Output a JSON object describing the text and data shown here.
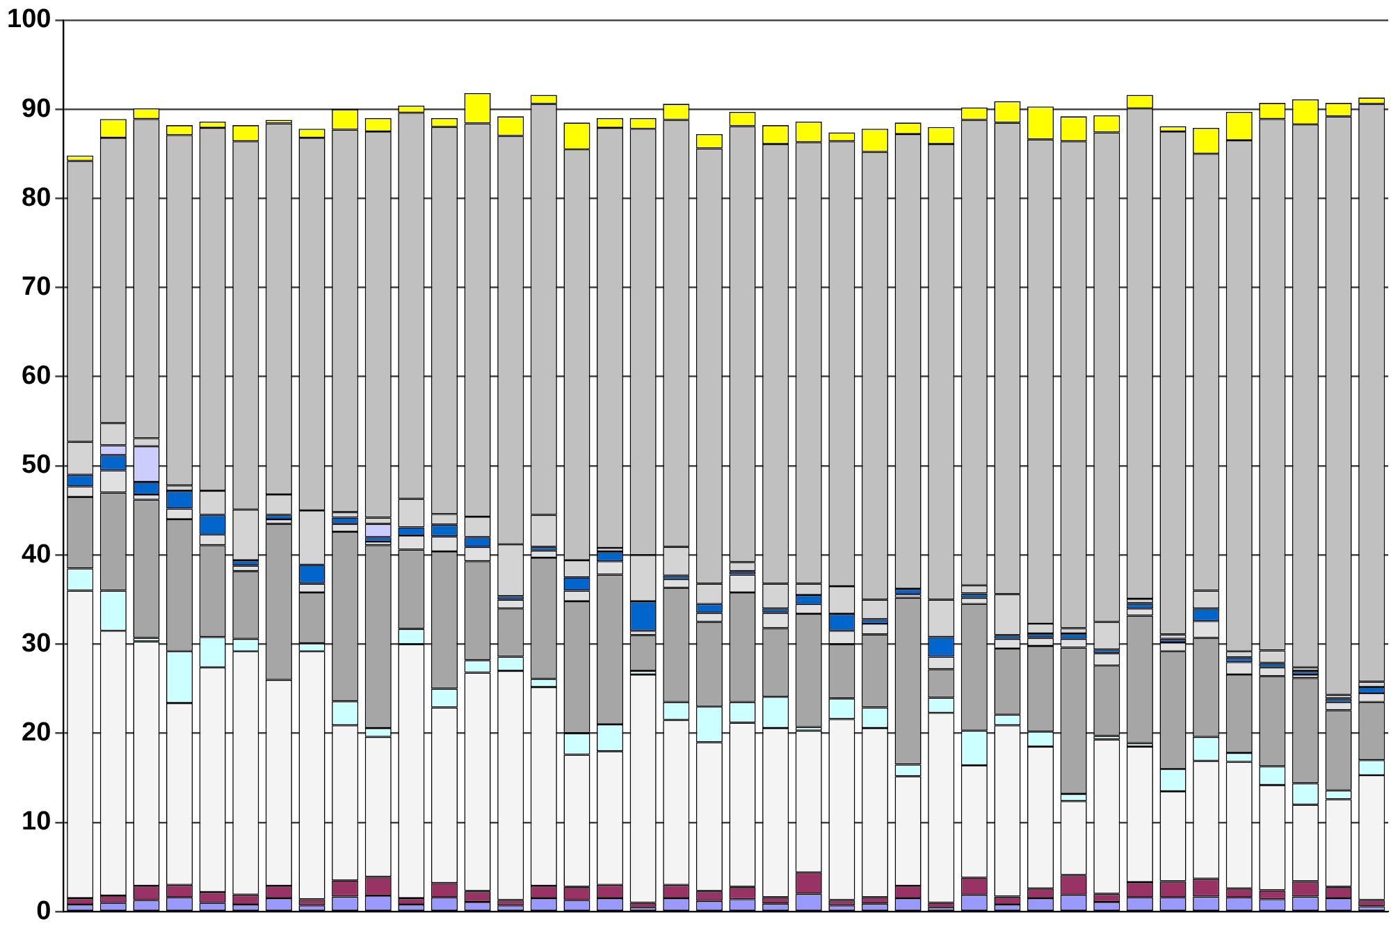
{
  "chart_data": {
    "type": "bar",
    "stacked": true,
    "grid": "y",
    "legend": false,
    "categories": [
      null,
      null,
      null,
      null,
      null,
      null,
      null,
      null,
      null,
      null,
      null,
      null,
      null,
      null,
      null,
      null,
      null,
      null,
      null,
      null,
      null,
      null,
      null,
      null,
      null,
      null,
      null,
      null,
      null,
      null,
      null,
      null,
      null,
      null,
      null,
      null,
      null,
      null,
      null,
      null
    ],
    "ylim": [
      0,
      100
    ],
    "yticks": [
      0,
      10,
      20,
      30,
      40,
      50,
      60,
      70,
      80,
      90,
      100
    ],
    "series": [
      {
        "color": "#9999ff",
        "values": [
          0.8,
          1,
          1.3,
          1.6,
          1,
          0.8,
          1.5,
          0.7,
          1.7,
          1.8,
          0.8,
          1.6,
          1.1,
          0.7,
          1.5,
          1.3,
          1.5,
          0.5,
          1.5,
          1.2,
          1.4,
          0.9,
          2,
          0.7,
          0.9,
          1.5,
          0.5,
          1.9,
          0.8,
          1.5,
          1.9,
          1.1,
          1.6,
          1.6,
          1.7,
          1.6,
          1.4,
          1.7,
          1.5,
          0.6
        ]
      },
      {
        "color": "#993366",
        "values": [
          0.7,
          0.8,
          1.6,
          1.4,
          1.2,
          1.1,
          1.4,
          0.7,
          1.8,
          2.1,
          0.7,
          1.6,
          1.2,
          0.6,
          1.4,
          1.5,
          1.5,
          0.5,
          1.5,
          1.1,
          1.4,
          0.7,
          2.4,
          0.6,
          0.7,
          1.4,
          0.5,
          1.9,
          0.9,
          1.1,
          2.2,
          0.9,
          1.7,
          1.8,
          2,
          1,
          1,
          1.7,
          1.3,
          0.7
        ]
      },
      {
        "color": "#f4f4f4",
        "values": [
          34.5,
          29.7,
          27.4,
          20.4,
          25.2,
          27.3,
          23.1,
          27.8,
          17.4,
          15.7,
          28.5,
          19.7,
          24.5,
          25.7,
          22.3,
          14.8,
          15,
          25.6,
          18.5,
          16.7,
          18.4,
          19,
          15.9,
          20.3,
          19,
          12.3,
          21.3,
          12.6,
          19.2,
          15.9,
          8.3,
          17.3,
          15.2,
          10.1,
          13.2,
          14.2,
          11.8,
          8.6,
          9.8,
          14
        ]
      },
      {
        "color": "#ccffff",
        "values": [
          2.5,
          4.5,
          0.4,
          5.8,
          3.4,
          1.4,
          null,
          0.9,
          2.7,
          1,
          1.7,
          2.1,
          1.4,
          1.6,
          0.9,
          2.4,
          3,
          0.4,
          2,
          4,
          2.3,
          3.5,
          0.4,
          2.3,
          2.3,
          1.3,
          1.7,
          3.9,
          1.2,
          1.7,
          0.8,
          0.4,
          0.4,
          2.5,
          2.7,
          1,
          2.1,
          2.4,
          1,
          1.7
        ]
      },
      {
        "color": "#a6a6a6",
        "values": [
          8,
          11,
          15.5,
          14.8,
          10.3,
          7.6,
          17.5,
          5.7,
          19,
          20.5,
          8.9,
          15.4,
          11.1,
          5.4,
          13.6,
          14.8,
          16.8,
          4,
          12.8,
          9.5,
          12.3,
          7.7,
          12.7,
          6.1,
          8.2,
          18.7,
          3.2,
          14.2,
          7.4,
          9.6,
          16.4,
          7.9,
          14.3,
          13.2,
          11.1,
          8.8,
          10.1,
          11.8,
          9,
          6.5
        ]
      },
      {
        "color": "#e0e0e0",
        "values": [
          1.2,
          2.5,
          0.6,
          1.2,
          1.2,
          0.6,
          0.5,
          1,
          0.9,
          0.4,
          1.6,
          1.7,
          1.6,
          1,
          0.8,
          1.2,
          1.5,
          0.5,
          1,
          1,
          2,
          1.7,
          1.1,
          1.5,
          1.2,
          0.4,
          1.4,
          0.7,
          1.1,
          0.9,
          1,
          1.4,
          0.8,
          1,
          1.9,
          1.4,
          1,
          0.4,
          0.9,
          1
        ]
      },
      {
        "color": "#0066cc",
        "values": [
          1.3,
          1.7,
          1.4,
          2,
          2.2,
          0.6,
          0.5,
          2.1,
          0.7,
          0.5,
          0.9,
          1.3,
          1.1,
          0.4,
          0.4,
          1.5,
          1.1,
          3.3,
          0.4,
          1,
          0.4,
          0.5,
          1,
          1.9,
          0.5,
          0.6,
          2.2,
          0.5,
          0.4,
          0.5,
          0.6,
          0.4,
          0.6,
          0.4,
          1.4,
          0.5,
          0.5,
          0.4,
          0.4,
          0.7
        ]
      },
      {
        "color": "#ccccff",
        "values": [
          null,
          1.1,
          4,
          null,
          null,
          null,
          null,
          null,
          null,
          1.5,
          null,
          null,
          null,
          null,
          null,
          null,
          null,
          null,
          null,
          null,
          null,
          null,
          null,
          null,
          null,
          null,
          null,
          null,
          null,
          null,
          null,
          null,
          null,
          null,
          null,
          null,
          null,
          null,
          null,
          null
        ]
      },
      {
        "color": "#d4d4d4",
        "values": [
          3.7,
          2.5,
          0.9,
          0.6,
          2.7,
          5.7,
          2.3,
          6.1,
          0.6,
          0.7,
          3.2,
          1.2,
          2.3,
          5.8,
          3.6,
          1.9,
          0.4,
          5.2,
          3.2,
          2.3,
          1,
          2.8,
          1.3,
          3.1,
          2.2,
          null,
          4.2,
          0.9,
          4.6,
          1.1,
          0.6,
          3.1,
          0.5,
          0.5,
          2,
          0.7,
          1.4,
          0.4,
          0.4,
          0.6
        ]
      },
      {
        "color": "#c0c0c0",
        "values": [
          31.5,
          32,
          35.8,
          39.3,
          40.7,
          41.3,
          41.6,
          41.8,
          42.9,
          43.3,
          43.3,
          43.4,
          44.1,
          45.8,
          46.1,
          46.1,
          47.1,
          47.8,
          47.9,
          48.8,
          48.9,
          49.3,
          49.5,
          49.9,
          50.2,
          51,
          51.1,
          52.2,
          52.9,
          54.3,
          54.6,
          54.9,
          55,
          56.4,
          49,
          57.3,
          59.6,
          60.9,
          64.9,
          64.8
        ]
      },
      {
        "color": "#ffff00",
        "values": [
          0.6,
          2.1,
          1.2,
          1.1,
          0.7,
          1.8,
          0.4,
          1,
          2.3,
          1.5,
          0.8,
          1,
          3.4,
          2.2,
          1,
          3,
          1.1,
          1.2,
          1.8,
          1.6,
          1.6,
          2.1,
          2.3,
          1,
          2.6,
          1.3,
          1.9,
          1.4,
          2.4,
          3.7,
          2.8,
          1.9,
          1.5,
          0.6,
          2.9,
          3.2,
          1.8,
          2.8,
          1.5,
          0.7
        ]
      }
    ]
  }
}
